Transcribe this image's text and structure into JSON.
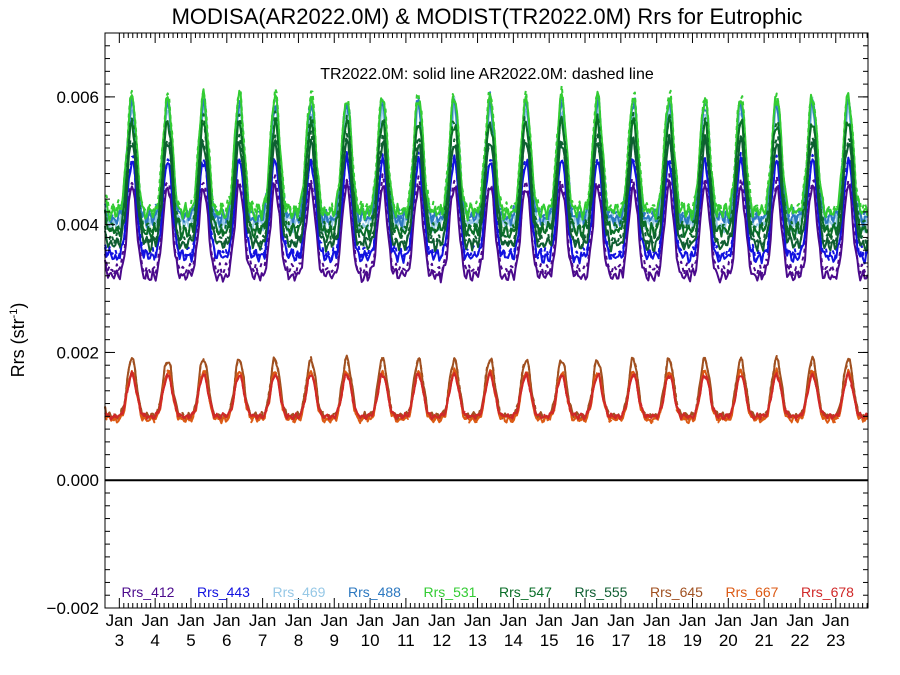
{
  "chart_data": {
    "type": "line",
    "title": "MODISA(AR2022.0M) & MODIST(TR2022.0M)  Rrs for Eutrophic",
    "annotation": "TR2022.0M: solid line   AR2022.0M: dashed line",
    "ylabel_main": "Rrs (str",
    "ylabel_sup": "-1",
    "ylabel_close": ")",
    "ylim": [
      -0.002,
      0.007
    ],
    "xlim": [
      2.6,
      23.9
    ],
    "yticks": [
      -0.002,
      0.0,
      0.002,
      0.004,
      0.006
    ],
    "ytick_labels": [
      "−0.002",
      "0.000",
      "0.002",
      "0.004",
      "0.006"
    ],
    "xticks": [
      3,
      4,
      5,
      6,
      7,
      8,
      9,
      10,
      11,
      12,
      13,
      14,
      15,
      16,
      17,
      18,
      19,
      20,
      21,
      22,
      23
    ],
    "xtick_top": "Jan",
    "xtick_labels": [
      "3",
      "4",
      "5",
      "6",
      "7",
      "8",
      "9",
      "10",
      "11",
      "12",
      "13",
      "14",
      "15",
      "16",
      "17",
      "18",
      "19",
      "20",
      "21",
      "22",
      "23"
    ],
    "zero_line": 0.0,
    "series": [
      {
        "name": "Rrs_412",
        "color": "#4b0a8c",
        "low": 0.0032,
        "high": 0.0046,
        "dash_offset": 0.0001
      },
      {
        "name": "Rrs_443",
        "color": "#1212e0",
        "low": 0.0035,
        "high": 0.005,
        "dash_offset": 5e-05
      },
      {
        "name": "Rrs_469",
        "color": "#96c8e6",
        "low": 0.004,
        "high": 0.0058,
        "dash_offset": 8e-05
      },
      {
        "name": "Rrs_488",
        "color": "#2c78c0",
        "low": 0.0041,
        "high": 0.0059,
        "dash_offset": 5e-05
      },
      {
        "name": "Rrs_531",
        "color": "#33cc33",
        "low": 0.0042,
        "high": 0.006,
        "dash_offset": 5e-05
      },
      {
        "name": "Rrs_547",
        "color": "#0a6e28",
        "low": 0.0039,
        "high": 0.0056,
        "dash_offset": 5e-05
      },
      {
        "name": "Rrs_555",
        "color": "#0f5e32",
        "low": 0.0037,
        "high": 0.0053,
        "dash_offset": 5e-05
      },
      {
        "name": "Rrs_645",
        "color": "#a05020",
        "low": 0.001,
        "high": 0.0019,
        "dash_offset": 0.0
      },
      {
        "name": "Rrs_667",
        "color": "#dc5a14",
        "low": 0.00095,
        "high": 0.0017,
        "dash_offset": 0.0
      },
      {
        "name": "Rrs_678",
        "color": "#d02828",
        "low": 0.001,
        "high": 0.00165,
        "dash_offset": 0.0
      }
    ]
  }
}
